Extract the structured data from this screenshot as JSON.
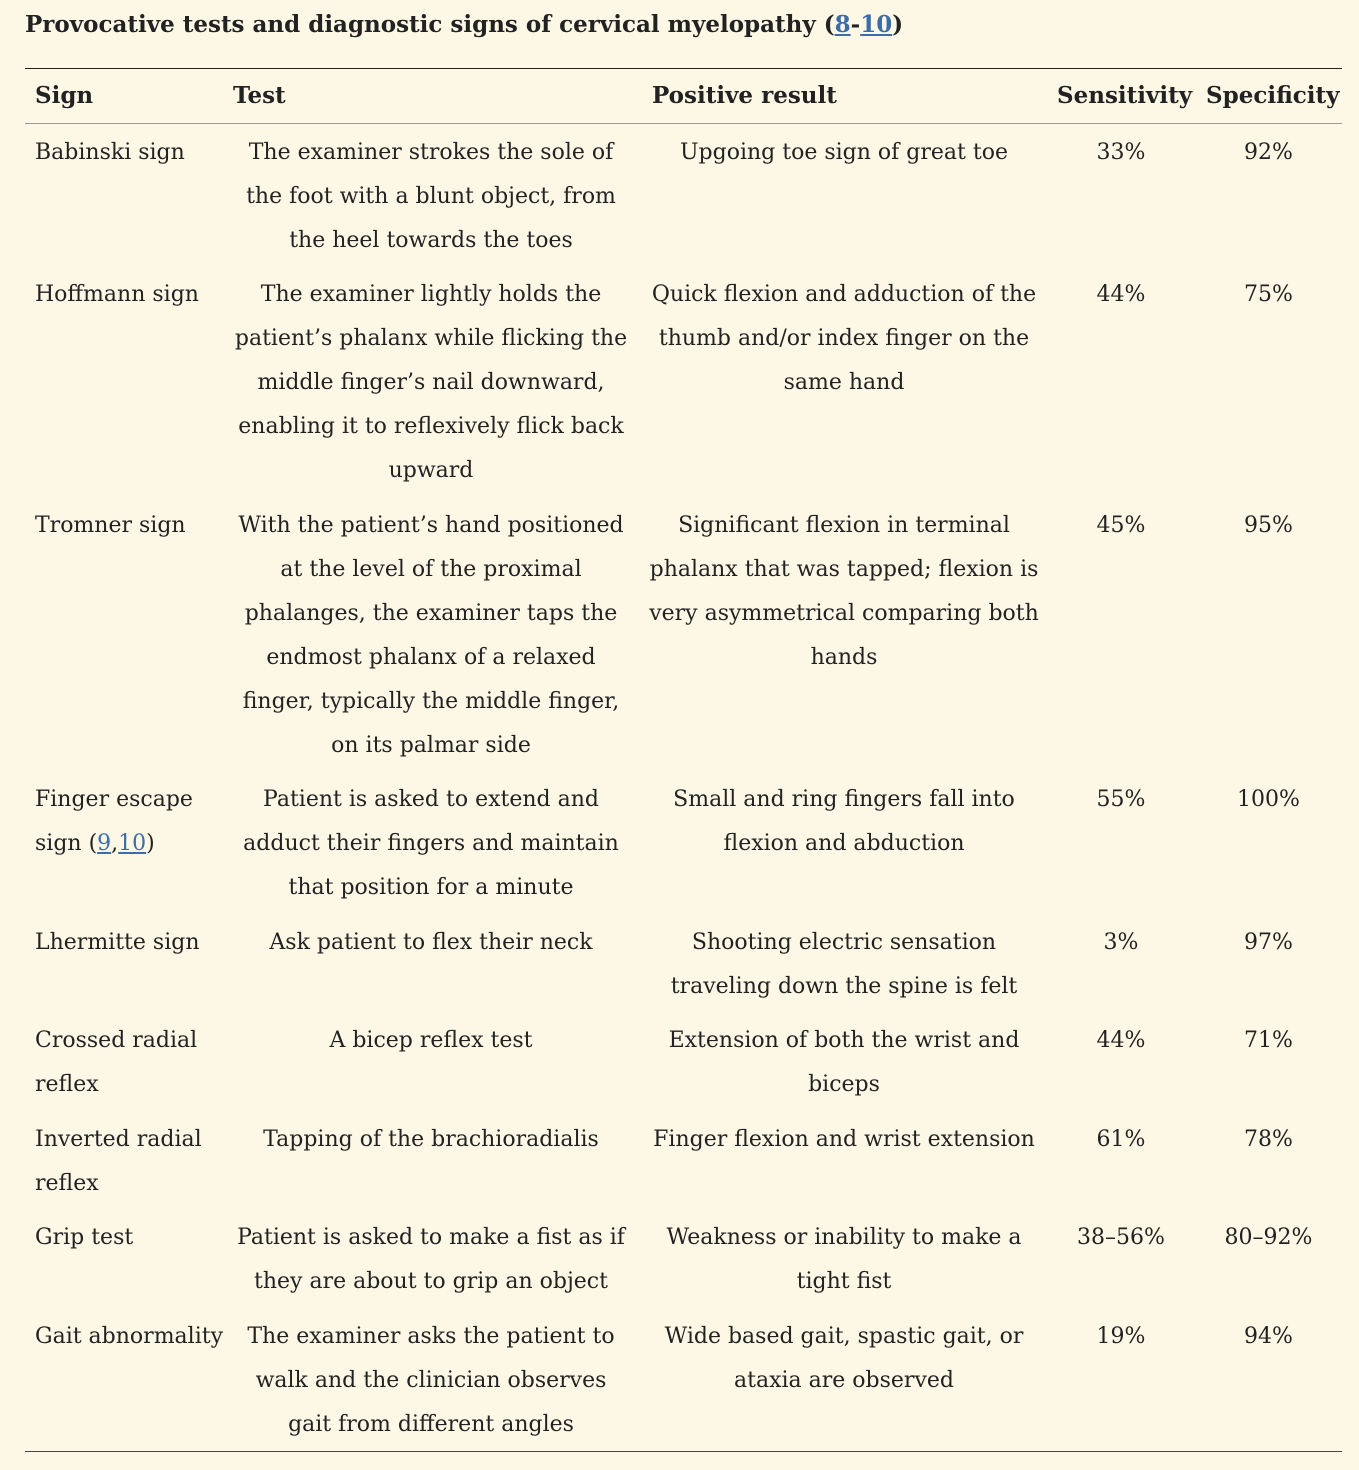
{
  "caption": {
    "text": "Provocative tests and diagnostic signs of cervical myelopathy (",
    "ref_a": "8",
    "dash": "-",
    "ref_b": "10",
    "close": ")"
  },
  "headers": {
    "sign": "Sign",
    "test": "Test",
    "positive": "Positive result",
    "sensitivity": "Sensitivity",
    "specificity": "Specificity"
  },
  "rows": [
    {
      "sign": "Babinski sign",
      "test": "The examiner strokes the sole of the foot with a blunt object, from the heel towards the toes",
      "positive": "Upgoing toe sign of great toe",
      "sensitivity": "33%",
      "specificity": "92%"
    },
    {
      "sign": "Hoffmann sign",
      "test": "The examiner lightly holds the patient’s phalanx while flicking the middle finger’s nail downward, enabling it to reflexively flick back upward",
      "positive": "Quick flexion and adduction of the thumb and/or index finger on the same hand",
      "sensitivity": "44%",
      "specificity": "75%"
    },
    {
      "sign": "Tromner sign",
      "test": "With the patient’s hand positioned at the level of the proximal phalanges, the examiner taps the endmost phalanx of a relaxed finger, typically the middle finger, on its palmar side",
      "positive": "Significant flexion in terminal phalanx that was tapped; flexion is very asymmetrical comparing both hands",
      "sensitivity": "45%",
      "specificity": "95%"
    },
    {
      "sign": "Finger escape sign (",
      "sign_ref_a": "9",
      "sign_ref_sep": ",",
      "sign_ref_b": "10",
      "sign_close": ")",
      "test": "Patient is asked to extend and adduct their fingers and maintain that position for a minute",
      "positive": "Small and ring fingers fall into flexion and abduction",
      "sensitivity": "55%",
      "specificity": "100%"
    },
    {
      "sign": "Lhermitte sign",
      "test": "Ask patient to flex their neck",
      "positive": "Shooting electric sensation traveling down the spine is felt",
      "sensitivity": "3%",
      "specificity": "97%"
    },
    {
      "sign": "Crossed radial reflex",
      "test": "A bicep reflex test",
      "positive": "Extension of both the wrist and biceps",
      "sensitivity": "44%",
      "specificity": "71%"
    },
    {
      "sign": "Inverted radial reflex",
      "test": "Tapping of the brachioradialis",
      "positive": "Finger flexion and wrist extension",
      "sensitivity": "61%",
      "specificity": "78%"
    },
    {
      "sign": "Grip test",
      "test": "Patient is asked to make a fist as if they are about to grip an object",
      "positive": "Weakness or inability to make a tight fist",
      "sensitivity": "38–56%",
      "specificity": "80–92%"
    },
    {
      "sign": "Gait abnormality",
      "test": "The examiner asks the patient to walk and the clinician observes gait from different angles",
      "positive": "Wide based gait, spastic gait, or ataxia are observed",
      "sensitivity": "19%",
      "specificity": "94%"
    }
  ]
}
